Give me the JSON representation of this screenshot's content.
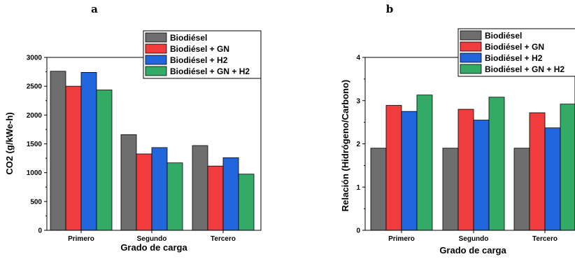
{
  "chart_data": [
    {
      "type": "bar",
      "panel_label": "a",
      "categories": [
        "Primero",
        "Segundo",
        "Tercero"
      ],
      "series": [
        {
          "name": "Biodiésel",
          "color": "#6e6e6e",
          "values": [
            2760,
            1660,
            1470
          ]
        },
        {
          "name": "Biodiésel + GN",
          "color": "#f03c3c",
          "values": [
            2500,
            1325,
            1115
          ]
        },
        {
          "name": "Biodiésel + H2",
          "color": "#2266dd",
          "values": [
            2740,
            1435,
            1260
          ]
        },
        {
          "name": "Biodiésel + GN + H2",
          "color": "#33aa66",
          "values": [
            2435,
            1170,
            975
          ]
        }
      ],
      "xlabel": "Grado de carga",
      "ylabel": "CO2 (g/kWe-h)",
      "ylim": [
        0,
        3000
      ],
      "yticks": [
        0,
        500,
        1000,
        1500,
        2000,
        2500,
        3000
      ],
      "legend_position": "top-right",
      "grid": false
    },
    {
      "type": "bar",
      "panel_label": "b",
      "categories": [
        "Primero",
        "Segundo",
        "Tercero"
      ],
      "series": [
        {
          "name": "Biodiésel",
          "color": "#6e6e6e",
          "values": [
            1.9,
            1.9,
            1.9
          ]
        },
        {
          "name": "Biodiésel + GN",
          "color": "#f03c3c",
          "values": [
            2.89,
            2.8,
            2.72
          ]
        },
        {
          "name": "Biodiésel + H2",
          "color": "#2266dd",
          "values": [
            2.75,
            2.55,
            2.37
          ]
        },
        {
          "name": "Biodiésel + GN + H2",
          "color": "#33aa66",
          "values": [
            3.13,
            3.08,
            2.92
          ]
        }
      ],
      "xlabel": "Grado de carga",
      "ylabel": "Relación (Hidrógeno/Carbono)",
      "ylim": [
        0,
        4
      ],
      "yticks": [
        0,
        1,
        2,
        3,
        4
      ],
      "legend_position": "top-right",
      "grid": false
    }
  ]
}
